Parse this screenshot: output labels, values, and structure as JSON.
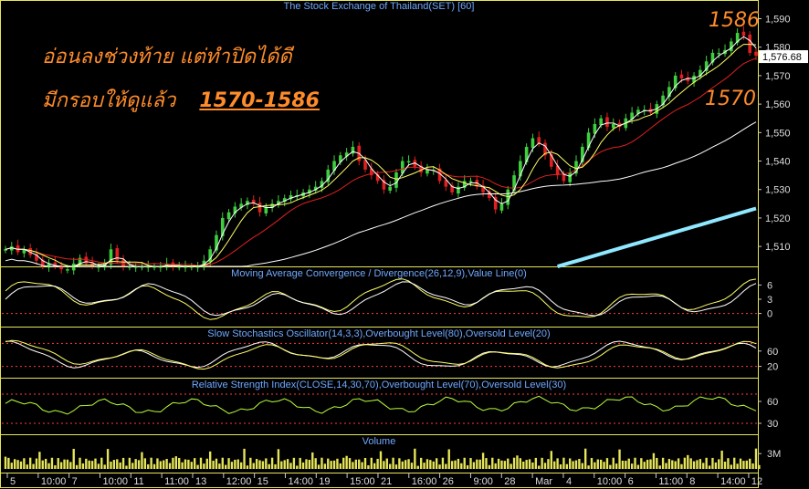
{
  "title": "The Stock Exchange of Thailand(SET) [60]",
  "annotations": {
    "line1": "อ่อนลงช่วงท้าย แต่ทำปิดได้ดี",
    "line2": "มีกรอบให้ดูแล้ว",
    "range": "1570-1586",
    "high_label": "1586",
    "low_label": "1570",
    "text_color": "#ff8c2a"
  },
  "colors": {
    "background": "#000000",
    "panel_border": "#e6e65a",
    "candle_up": "#3ecf3e",
    "candle_down": "#e02020",
    "ma_fast": "#ffffff",
    "ma_mid": "#ffff66",
    "ma_slow": "#e02020",
    "ma_long": "#ffffff",
    "ma_very_long": "#8fe8ff",
    "panel_title": "#6fa8ff",
    "guide": "#ff3b3b"
  },
  "chart_data": {
    "type": "candlestick",
    "price_panel": {
      "y_ticks": [
        "1,590",
        "1,580",
        "1,570",
        "1,560",
        "1,550",
        "1,540",
        "1,530",
        "1,520",
        "1,510"
      ],
      "ylim": [
        1503,
        1594
      ],
      "last_price": "1,576.68",
      "close_path": [
        1509,
        1510,
        1508,
        1509,
        1507,
        1505,
        1503,
        1504,
        1503,
        1502,
        1502,
        1504,
        1506,
        1504,
        1503,
        1503,
        1504,
        1509,
        1505,
        1503,
        1503,
        1503,
        1503,
        1503,
        1503,
        1503,
        1504,
        1503,
        1503,
        1503,
        1503,
        1503,
        1505,
        1509,
        1514,
        1520,
        1522,
        1524,
        1525,
        1526,
        1525,
        1522,
        1524,
        1525,
        1526,
        1527,
        1528,
        1528,
        1529,
        1530,
        1531,
        1533,
        1537,
        1540,
        1542,
        1543,
        1545,
        1540,
        1537,
        1535,
        1533,
        1530,
        1531,
        1536,
        1540,
        1540,
        1538,
        1536,
        1537,
        1537,
        1533,
        1531,
        1529,
        1531,
        1533,
        1533,
        1531,
        1529,
        1527,
        1523,
        1525,
        1530,
        1535,
        1540,
        1545,
        1548,
        1546,
        1542,
        1538,
        1535,
        1533,
        1536,
        1540,
        1545,
        1550,
        1553,
        1555,
        1552,
        1553,
        1552,
        1555,
        1557,
        1558,
        1558,
        1557,
        1560,
        1563,
        1566,
        1570,
        1569,
        1568,
        1570,
        1572,
        1575,
        1578,
        1578,
        1579,
        1582,
        1585,
        1584,
        1578,
        1577
      ]
    },
    "indicators": [
      {
        "name": "Moving Average Convergence / Divergence(26,12,9),Value Line(0)",
        "y_ticks": [
          "6",
          "3",
          "0"
        ],
        "ylim": [
          -2,
          8
        ]
      },
      {
        "name": "Slow Stochastics Oscillator(14,3,3),Overbought Level(80),Oversold Level(20)",
        "y_ticks": [
          "60",
          "20"
        ],
        "ylim": [
          0,
          100
        ]
      },
      {
        "name": "Relative Strength Index(CLOSE,14,30,70),Overbought Level(70),Oversold Level(30)",
        "y_ticks": [
          "60",
          "30"
        ],
        "ylim": [
          20,
          80
        ]
      },
      {
        "name": "Volume",
        "y_ticks": [
          "3M"
        ],
        "ylim": [
          0,
          5
        ]
      }
    ],
    "x_ticks": [
      "5",
      "10:00",
      "7",
      "10:00",
      "11",
      "11:00",
      "13",
      "12:00",
      "15",
      "14:00",
      "19",
      "15:00",
      "21",
      "16:00",
      "26",
      "9:00",
      "28",
      "Mar",
      "4",
      "10:00",
      "6",
      "11:00",
      "8",
      "14:00",
      "12"
    ]
  }
}
